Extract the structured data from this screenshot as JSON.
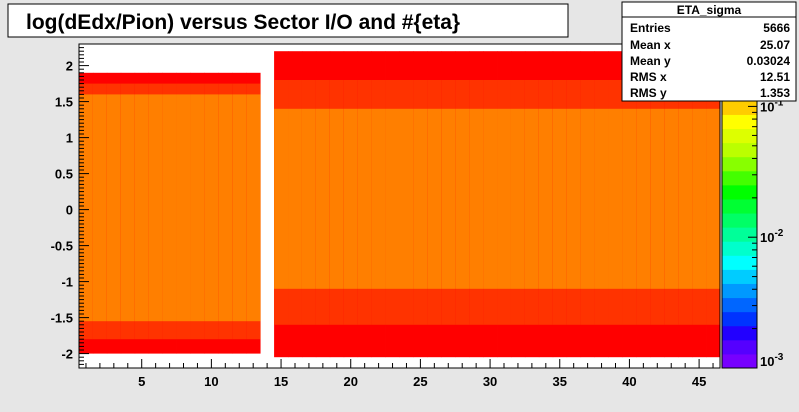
{
  "chart_data": {
    "type": "heatmap",
    "title": "log(dEdx/Pion) versus Sector I/O and #{eta}",
    "xlabel": "",
    "ylabel": "",
    "xlim": [
      0.5,
      46.5
    ],
    "ylim": [
      -2.2,
      2.3
    ],
    "x_ticks": [
      5,
      10,
      15,
      20,
      25,
      30,
      35,
      40,
      45
    ],
    "y_ticks": [
      -2,
      -1.5,
      -1,
      -0.5,
      0,
      0.5,
      1,
      1.5,
      2
    ],
    "x_tick_labels": [
      "5",
      "10",
      "15",
      "20",
      "25",
      "30",
      "35",
      "40",
      "45"
    ],
    "y_tick_labels": [
      "-2",
      "-1.5",
      "-1",
      "-0.5",
      "0",
      "0.5",
      "1",
      "1.5",
      "2"
    ],
    "z_scale": "log",
    "z_ticks": [
      {
        "base": "10",
        "exp": "-1",
        "z": 0.1
      },
      {
        "base": "10",
        "exp": "-2",
        "z": 0.01
      },
      {
        "base": "10",
        "exp": "-3",
        "z": 0.001
      }
    ],
    "zlim": [
      0.001,
      0.3
    ],
    "colorbar_colors": [
      "#7700ff",
      "#5500ff",
      "#2200ff",
      "#0033ff",
      "#0066ff",
      "#0099ff",
      "#00ccff",
      "#00ffff",
      "#00ffcc",
      "#00ff99",
      "#00ff66",
      "#00ff33",
      "#00ff00",
      "#44ff00",
      "#88ff00",
      "#bbff00",
      "#ddff00",
      "#ffff00",
      "#ffcc00",
      "#ff9900",
      "#ff7700",
      "#ff4400",
      "#ff0000"
    ],
    "cell_colors": {
      "high": "#ff7f00",
      "mid": "#ff3300",
      "low": "#ff0000",
      "white": "#ffffff"
    },
    "segments": [
      {
        "x_from": 0.5,
        "x_to": 13.5,
        "core_low": -1.55,
        "core_high": 1.6,
        "band_low": -1.8,
        "band_high": 1.75,
        "edge_low": -2.0,
        "edge_high": 1.9
      },
      {
        "x_from": 14.5,
        "x_to": 46.5,
        "core_low": -1.1,
        "core_high": 1.4,
        "band_low": -1.6,
        "band_high": 1.8,
        "edge_low": -2.05,
        "edge_high": 2.2
      }
    ],
    "empty_column_x": 14,
    "stats_box": {
      "title": "ETA_sigma",
      "rows": [
        {
          "label": "Entries",
          "value": "5666"
        },
        {
          "label": "Mean x",
          "value": "25.07"
        },
        {
          "label": "Mean y",
          "value": "0.03024"
        },
        {
          "label": "RMS x",
          "value": "12.51"
        },
        {
          "label": "RMS y",
          "value": "1.353"
        }
      ]
    }
  }
}
